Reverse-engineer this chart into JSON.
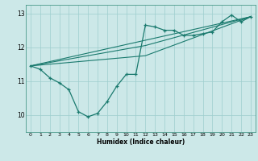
{
  "xlabel": "Humidex (Indice chaleur)",
  "bg_color": "#cce8e8",
  "line_color": "#1a7a6e",
  "grid_color": "#9ecece",
  "xlim": [
    -0.5,
    23.5
  ],
  "ylim": [
    9.5,
    13.25
  ],
  "yticks": [
    10,
    11,
    12,
    13
  ],
  "xticks": [
    0,
    1,
    2,
    3,
    4,
    5,
    6,
    7,
    8,
    9,
    10,
    11,
    12,
    13,
    14,
    15,
    16,
    17,
    18,
    19,
    20,
    21,
    22,
    23
  ],
  "line1_x": [
    0,
    1,
    2,
    3,
    4,
    5,
    6,
    7,
    8,
    9,
    10,
    11,
    12,
    13,
    14,
    15,
    16,
    17,
    18,
    19,
    20,
    21,
    22,
    23
  ],
  "line1_y": [
    11.45,
    11.35,
    11.1,
    10.95,
    10.75,
    10.1,
    9.95,
    10.05,
    10.4,
    10.85,
    11.2,
    11.2,
    12.65,
    12.6,
    12.5,
    12.5,
    12.35,
    12.35,
    12.4,
    12.45,
    12.75,
    12.95,
    12.75,
    12.9
  ],
  "line2_x": [
    0,
    23
  ],
  "line2_y": [
    11.45,
    12.9
  ],
  "line3_x": [
    0,
    12,
    23
  ],
  "line3_y": [
    11.45,
    12.05,
    12.9
  ],
  "line4_x": [
    0,
    12,
    23
  ],
  "line4_y": [
    11.45,
    11.75,
    12.9
  ]
}
